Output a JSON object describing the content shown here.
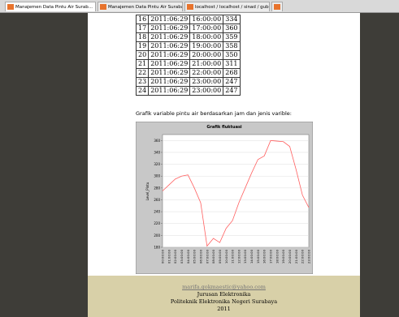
{
  "tabs": [
    "Manajemen Data Pintu Air Surab...",
    "Manajemen Data Pintu Air Surabaya",
    "localhost / localhost / sinad / gubeng | ...",
    "+"
  ],
  "table": {
    "rows": [
      [
        "16",
        "2011:06:29",
        "16:00:00",
        "334"
      ],
      [
        "17",
        "2011:06:29",
        "17:00:00",
        "360"
      ],
      [
        "18",
        "2011:06:29",
        "18:00:00",
        "359"
      ],
      [
        "19",
        "2011:06:29",
        "19:00:00",
        "358"
      ],
      [
        "20",
        "2011:06:29",
        "20:00:00",
        "350"
      ],
      [
        "21",
        "2011:06:29",
        "21:00:00",
        "311"
      ],
      [
        "22",
        "2011:06:29",
        "22:00:00",
        "268"
      ],
      [
        "23",
        "2011:06:29",
        "23:00:00",
        "247"
      ],
      [
        "24",
        "2011:06:29",
        "23:00:00",
        "247"
      ]
    ]
  },
  "caption": "Grafik variable pintu air berdasarkan jam dan jenis varible:",
  "chart_data": {
    "type": "line",
    "title": "Grafik fluktuasi",
    "y_label": "Level_Pintu",
    "categories": [
      "00:00:00",
      "01:00:00",
      "02:00:00",
      "03:00:00",
      "04:00:00",
      "05:00:00",
      "06:00:00",
      "07:00:00",
      "08:00:00",
      "09:00:00",
      "10:00:00",
      "11:00:00",
      "12:00:00",
      "13:00:00",
      "14:00:00",
      "15:00:00",
      "16:00:00",
      "17:00:00",
      "18:00:00",
      "19:00:00",
      "20:00:00",
      "21:00:00",
      "22:00:00",
      "23:00:00"
    ],
    "series": [
      {
        "name": "Level_Pintu",
        "color": "#ff6060",
        "values": [
          275,
          285,
          295,
          300,
          302,
          280,
          255,
          182,
          195,
          188,
          212,
          225,
          255,
          280,
          305,
          328,
          334,
          360,
          359,
          358,
          350,
          311,
          268,
          247
        ]
      }
    ],
    "ylim": [
      180,
      370
    ],
    "yticks": [
      180,
      200,
      220,
      240,
      260,
      280,
      300,
      320,
      340,
      360
    ],
    "grid": true
  },
  "footer": {
    "email": "marifa.gokmaestic@yahoo.com",
    "lines": [
      "Jurusan Elektronika",
      "Politeknik Elektronika Negeri Surabaya",
      "2011"
    ]
  }
}
